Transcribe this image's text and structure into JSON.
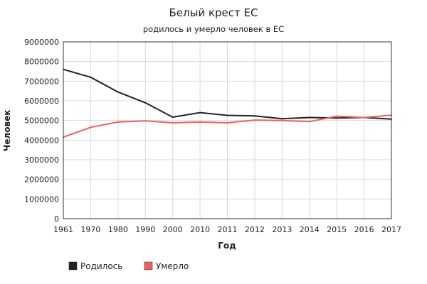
{
  "chart_data": {
    "type": "line",
    "title": "Белый крест ЕС",
    "subtitle": "родилось и умерло человек в ЕС",
    "xlabel": "Год",
    "ylabel": "Человек",
    "categories": [
      "1961",
      "1970",
      "1980",
      "1990",
      "2000",
      "2010",
      "2011",
      "2012",
      "2013",
      "2014",
      "2015",
      "2016",
      "2017"
    ],
    "yticks": [
      "0",
      "1000000",
      "2000000",
      "3000000",
      "4000000",
      "5000000",
      "6000000",
      "7000000",
      "8000000",
      "9000000"
    ],
    "ylim": [
      0,
      9000000
    ],
    "grid": true,
    "legend_position": "bottom-left",
    "series": [
      {
        "name": "Родилось",
        "color": "#222222",
        "values": [
          7600000,
          7200000,
          6450000,
          5900000,
          5170000,
          5400000,
          5260000,
          5230000,
          5090000,
          5150000,
          5120000,
          5150000,
          5070000
        ]
      },
      {
        "name": "Умерло",
        "color": "#f06060",
        "values": [
          4150000,
          4650000,
          4920000,
          4980000,
          4880000,
          4920000,
          4880000,
          5020000,
          5000000,
          4940000,
          5220000,
          5150000,
          5270000
        ]
      }
    ]
  }
}
